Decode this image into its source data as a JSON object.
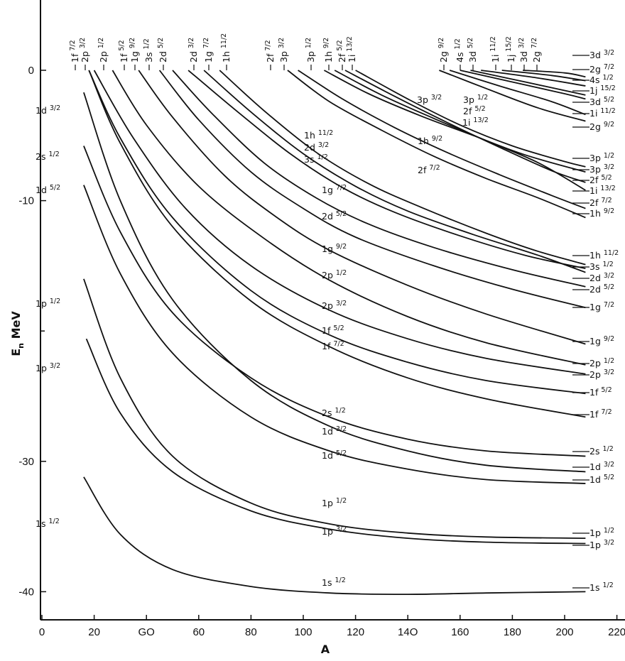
{
  "chart_data": {
    "type": "line",
    "title": "",
    "xlabel": "A",
    "ylabel": "E_n MeV",
    "xlim": [
      0,
      230
    ],
    "ylim": [
      -42,
      5
    ],
    "x_tick_labels": [
      "0",
      "20",
      "GO",
      "60",
      "80",
      "100",
      "120",
      "14O",
      "160",
      "180",
      "200",
      "220"
    ],
    "y_tick_labels": [
      "0",
      "-10",
      "-30",
      "-40"
    ],
    "grid": false,
    "series": [
      {
        "name": "1s 1/2",
        "x": [
          16,
          30,
          50,
          80,
          110,
          140,
          170,
          208
        ],
        "y": [
          -31.2,
          -35.6,
          -38.3,
          -39.6,
          -40.1,
          -40.2,
          -40.1,
          -40.0
        ]
      },
      {
        "name": "1p 3/2",
        "x": [
          17,
          30,
          50,
          80,
          110,
          140,
          170,
          208
        ],
        "y": [
          -20.6,
          -26.3,
          -30.8,
          -33.8,
          -35.2,
          -35.9,
          -36.2,
          -36.3
        ]
      },
      {
        "name": "1p 1/2",
        "x": [
          16,
          30,
          50,
          80,
          110,
          140,
          170,
          208
        ],
        "y": [
          -16.0,
          -23.6,
          -29.6,
          -33.2,
          -34.8,
          -35.5,
          -35.8,
          -35.9
        ]
      },
      {
        "name": "1d 5/2",
        "x": [
          16,
          30,
          50,
          80,
          110,
          140,
          170,
          208
        ],
        "y": [
          -8.8,
          -15.6,
          -21.7,
          -26.6,
          -29.2,
          -30.6,
          -31.4,
          -31.7
        ]
      },
      {
        "name": "1d 3/2",
        "x": [
          16,
          30,
          50,
          80,
          110,
          140,
          170,
          208
        ],
        "y": [
          -1.7,
          -10.0,
          -17.6,
          -23.8,
          -27.3,
          -29.2,
          -30.3,
          -30.8
        ]
      },
      {
        "name": "2s 1/2",
        "x": [
          16,
          30,
          50,
          80,
          110,
          140,
          170,
          208
        ],
        "y": [
          -5.8,
          -12.4,
          -18.6,
          -23.6,
          -26.6,
          -28.3,
          -29.2,
          -29.6
        ]
      },
      {
        "name": "1f 7/2",
        "x": [
          18,
          30,
          50,
          80,
          110,
          140,
          170,
          208
        ],
        "y": [
          0,
          -5.6,
          -12.0,
          -17.7,
          -21.2,
          -23.6,
          -25.2,
          -26.6
        ]
      },
      {
        "name": "1f 5/2",
        "x": [
          18,
          30,
          50,
          80,
          110,
          140,
          170,
          208
        ],
        "y": [
          0,
          -5.2,
          -11.3,
          -16.9,
          -20.3,
          -22.4,
          -23.8,
          -24.8
        ]
      },
      {
        "name": "2p 3/2",
        "x": [
          20,
          35,
          55,
          80,
          110,
          140,
          170,
          208
        ],
        "y": [
          0,
          -5.2,
          -10.6,
          -15.0,
          -18.4,
          -20.6,
          -22.1,
          -23.3
        ]
      },
      {
        "name": "2p 1/2",
        "x": [
          27,
          40,
          60,
          85,
          110,
          140,
          170,
          208
        ],
        "y": [
          0,
          -4.2,
          -8.9,
          -12.9,
          -16.1,
          -18.9,
          -20.9,
          -22.6
        ]
      },
      {
        "name": "1g 9/2",
        "x": [
          37,
          50,
          70,
          90,
          110,
          140,
          170,
          208
        ],
        "y": [
          0,
          -3.6,
          -8.1,
          -11.3,
          -13.8,
          -16.5,
          -18.7,
          -21.0
        ]
      },
      {
        "name": "1g 7/2",
        "x": [
          45,
          60,
          80,
          100,
          120,
          150,
          180,
          208
        ],
        "y": [
          0,
          -3.8,
          -7.8,
          -10.6,
          -12.8,
          -15.0,
          -16.8,
          -18.2
        ]
      },
      {
        "name": "2d 5/2",
        "x": [
          50,
          65,
          85,
          105,
          125,
          150,
          180,
          208
        ],
        "y": [
          0,
          -3.3,
          -7.1,
          -9.8,
          -11.8,
          -13.6,
          -15.3,
          -16.6
        ]
      },
      {
        "name": "3s 1/2",
        "x": [
          56,
          75,
          95,
          115,
          135,
          160,
          185,
          208
        ],
        "y": [
          0,
          -3.2,
          -6.4,
          -9.0,
          -10.9,
          -12.7,
          -14.2,
          -15.2
        ]
      },
      {
        "name": "2d 3/2",
        "x": [
          62,
          80,
          100,
          120,
          140,
          165,
          190,
          208
        ],
        "y": [
          0,
          -3.2,
          -6.4,
          -8.9,
          -10.8,
          -12.6,
          -14.2,
          -15.5
        ]
      },
      {
        "name": "1h 11/2",
        "x": [
          68,
          85,
          105,
          125,
          145,
          170,
          190,
          208
        ],
        "y": [
          0,
          -3.1,
          -6.3,
          -8.7,
          -10.5,
          -12.5,
          -13.9,
          -14.9
        ]
      },
      {
        "name": "1h 9/2",
        "x": [
          94,
          110,
          130,
          150,
          170,
          190,
          208
        ],
        "y": [
          0,
          -2.4,
          -4.6,
          -6.6,
          -8.3,
          -9.8,
          -11.3
        ]
      },
      {
        "name": "2f 7/2",
        "x": [
          98,
          115,
          135,
          155,
          175,
          195,
          208
        ],
        "y": [
          0,
          -2.2,
          -4.4,
          -6.3,
          -8.0,
          -9.6,
          -10.6
        ]
      },
      {
        "name": "3p 3/2",
        "x": [
          108,
          125,
          145,
          165,
          185,
          208
        ],
        "y": [
          0,
          -1.8,
          -3.5,
          -5.0,
          -6.5,
          -7.8
        ]
      },
      {
        "name": "1i 13/2",
        "x": [
          112,
          130,
          150,
          170,
          190,
          208
        ],
        "y": [
          0,
          -1.9,
          -3.7,
          -5.4,
          -7.1,
          -9.2
        ]
      },
      {
        "name": "2f 5/2",
        "x": [
          116,
          135,
          155,
          175,
          195,
          208
        ],
        "y": [
          0,
          -2.0,
          -4.0,
          -5.9,
          -7.7,
          -8.6
        ]
      },
      {
        "name": "3p 1/2",
        "x": [
          120,
          140,
          160,
          180,
          200,
          208
        ],
        "y": [
          0,
          -2.2,
          -4.2,
          -5.8,
          -7.0,
          -7.4
        ]
      },
      {
        "name": "2g 9/2",
        "x": [
          152,
          170,
          190,
          208
        ],
        "y": [
          0,
          -1.4,
          -2.9,
          -3.9
        ]
      },
      {
        "name": "1i 11/2",
        "x": [
          156,
          175,
          195,
          208
        ],
        "y": [
          0,
          -1.2,
          -2.4,
          -3.4
        ]
      },
      {
        "name": "3d 5/2",
        "x": [
          160,
          180,
          200,
          208
        ],
        "y": [
          0,
          -0.9,
          -1.8,
          -2.2
        ]
      },
      {
        "name": "1j 15/2",
        "x": [
          164,
          185,
          208
        ],
        "y": [
          0,
          -0.9,
          -1.9
        ]
      },
      {
        "name": "4s 1/2",
        "x": [
          168,
          190,
          208
        ],
        "y": [
          0,
          -0.6,
          -1.2
        ]
      },
      {
        "name": "2g 7/2",
        "x": [
          176,
          195,
          208
        ],
        "y": [
          0,
          -0.4,
          -0.8
        ]
      },
      {
        "name": "3d 3/2",
        "x": [
          184,
          200,
          208
        ],
        "y": [
          0,
          -0.2,
          -0.5
        ]
      }
    ],
    "left_labels": [
      {
        "b": "1d",
        "s": "3/2"
      },
      {
        "b": "2s",
        "s": "1/2"
      },
      {
        "b": "1d",
        "s": "5/2"
      },
      {
        "b": "1p",
        "s": "1/2"
      },
      {
        "b": "1p",
        "s": "3/2"
      },
      {
        "b": "1s",
        "s": "1/2"
      }
    ],
    "top_labels": [
      {
        "b": "1f",
        "s": "7/2"
      },
      {
        "b": "2p",
        "s": "3/2"
      },
      {
        "b": "2p",
        "s": "1/2"
      },
      {
        "b": "1f",
        "s": "5/2"
      },
      {
        "b": "1g",
        "s": "9/2"
      },
      {
        "b": "3s",
        "s": "1/2"
      },
      {
        "b": "2d",
        "s": "5/2"
      },
      {
        "b": "2d",
        "s": "3/2"
      },
      {
        "b": "1g",
        "s": "7/2"
      },
      {
        "b": "1h",
        "s": "11/2"
      },
      {
        "b": "2f",
        "s": "7/2"
      },
      {
        "b": "3p",
        "s": "3/2"
      },
      {
        "b": "3p",
        "s": "1/2"
      },
      {
        "b": "1h",
        "s": "9/2"
      },
      {
        "b": "2f",
        "s": "5/2"
      },
      {
        "b": "1i",
        "s": "13/2"
      },
      {
        "b": "2g",
        "s": "9/2"
      },
      {
        "b": "4s",
        "s": "1/2"
      },
      {
        "b": "3d",
        "s": "5/2"
      },
      {
        "b": "1i",
        "s": "11/2"
      },
      {
        "b": "1j",
        "s": "15/2"
      },
      {
        "b": "3d",
        "s": "3/2"
      },
      {
        "b": "2g",
        "s": "7/2"
      }
    ],
    "right_labels": [
      {
        "b": "3d",
        "s": "3/2"
      },
      {
        "b": "2g",
        "s": "7/2"
      },
      {
        "b": "4s",
        "s": "1/2"
      },
      {
        "b": "1j",
        "s": "15/2"
      },
      {
        "b": "3d",
        "s": "5/2"
      },
      {
        "b": "1i",
        "s": "11/2"
      },
      {
        "b": "2g",
        "s": "9/2"
      },
      {
        "b": "3p",
        "s": "1/2"
      },
      {
        "b": "3p",
        "s": "3/2"
      },
      {
        "b": "2f",
        "s": "5/2"
      },
      {
        "b": "1i",
        "s": "13/2"
      },
      {
        "b": "2f",
        "s": "7/2"
      },
      {
        "b": "1h",
        "s": "9/2"
      },
      {
        "b": "1h",
        "s": "11/2"
      },
      {
        "b": "3s",
        "s": "1/2"
      },
      {
        "b": "2d",
        "s": "3/2"
      },
      {
        "b": "2d",
        "s": "5/2"
      },
      {
        "b": "1g",
        "s": "7/2"
      },
      {
        "b": "1g",
        "s": "9/2"
      },
      {
        "b": "2p",
        "s": "1/2"
      },
      {
        "b": "2p",
        "s": "3/2"
      },
      {
        "b": "1f",
        "s": "5/2"
      },
      {
        "b": "1f",
        "s": "7/2"
      },
      {
        "b": "2s",
        "s": "1/2"
      },
      {
        "b": "1d",
        "s": "3/2"
      },
      {
        "b": "1d",
        "s": "5/2"
      },
      {
        "b": "1p",
        "s": "1/2"
      },
      {
        "b": "1p",
        "s": "3/2"
      },
      {
        "b": "1s",
        "s": "1/2"
      }
    ],
    "inner_labels": [
      {
        "b": "3p",
        "s": "3/2"
      },
      {
        "b": "3p",
        "s": "1/2"
      },
      {
        "b": "2f",
        "s": "5/2"
      },
      {
        "b": "1i",
        "s": "13/2"
      },
      {
        "b": "1h",
        "s": "9/2"
      },
      {
        "b": "2f",
        "s": "7/2"
      },
      {
        "b": "1h",
        "s": "11/2"
      },
      {
        "b": "2d",
        "s": "3/2"
      },
      {
        "b": "3s",
        "s": "1/2"
      },
      {
        "b": "1g",
        "s": "7/2"
      },
      {
        "b": "2d",
        "s": "5/2"
      },
      {
        "b": "1g",
        "s": "9/2"
      },
      {
        "b": "2p",
        "s": "1/2"
      },
      {
        "b": "2p",
        "s": "3/2"
      },
      {
        "b": "1f",
        "s": "5/2"
      },
      {
        "b": "1f",
        "s": "7/2"
      },
      {
        "b": "2s",
        "s": "1/2"
      },
      {
        "b": "1d",
        "s": "3/2"
      },
      {
        "b": "1d",
        "s": "5/2"
      },
      {
        "b": "1p",
        "s": "1/2"
      },
      {
        "b": "1p",
        "s": "3/2"
      },
      {
        "b": "1s",
        "s": "1/2"
      }
    ]
  }
}
